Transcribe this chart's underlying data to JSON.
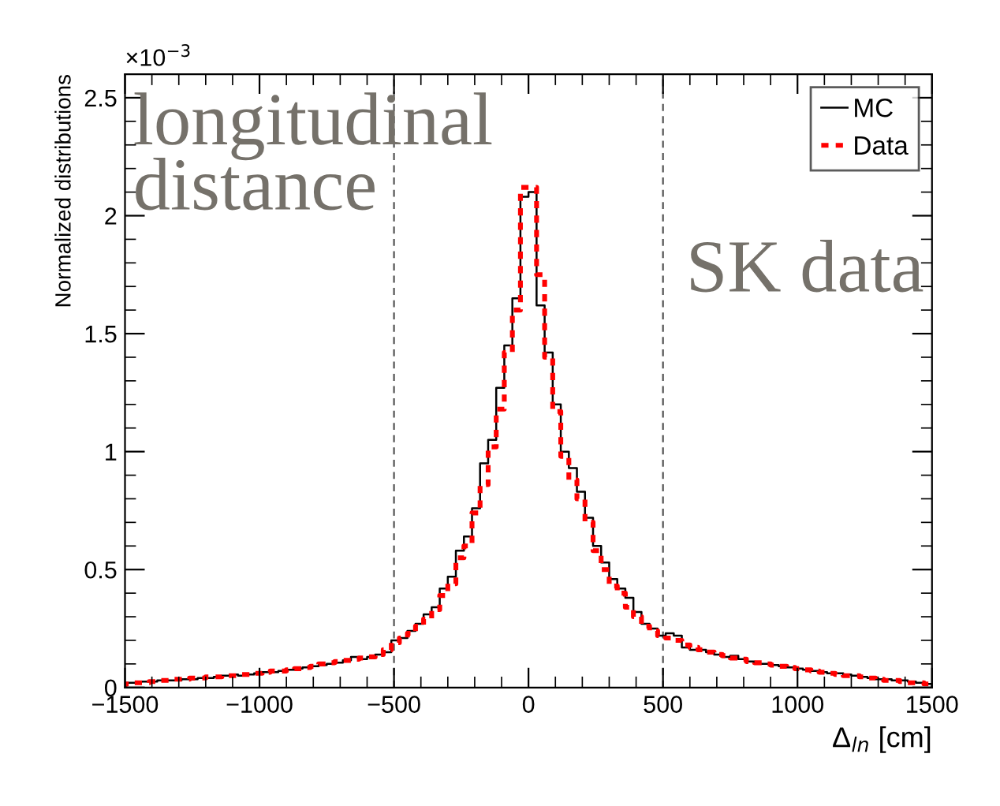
{
  "chart_data": {
    "type": "histogram",
    "ylabel": "Normalized distributions",
    "xlabel": "Δ$_{ln}$ [cm]",
    "bins": [
      -1500,
      -1470,
      -1440,
      -1410,
      -1380,
      -1350,
      -1320,
      -1290,
      -1260,
      -1230,
      -1200,
      -1170,
      -1140,
      -1110,
      -1080,
      -1050,
      -1020,
      -990,
      -960,
      -930,
      -900,
      -870,
      -840,
      -810,
      -780,
      -750,
      -720,
      -690,
      -660,
      -630,
      -600,
      -570,
      -540,
      -510,
      -480,
      -450,
      -420,
      -390,
      -360,
      -330,
      -300,
      -270,
      -240,
      -210,
      -180,
      -150,
      -120,
      -90,
      -60,
      -30,
      0,
      30,
      60,
      90,
      120,
      150,
      180,
      210,
      240,
      270,
      300,
      330,
      360,
      390,
      420,
      450,
      480,
      510,
      540,
      570,
      600,
      630,
      660,
      690,
      720,
      750,
      780,
      810,
      840,
      870,
      900,
      930,
      960,
      990,
      1020,
      1050,
      1080,
      1110,
      1140,
      1170,
      1200,
      1230,
      1260,
      1290,
      1320,
      1350,
      1380,
      1410,
      1440,
      1470,
      1500
    ],
    "series": [
      {
        "name": "MC",
        "color": "#000000",
        "line_style": "solid",
        "values": [
          0.02,
          0.02,
          0.025,
          0.025,
          0.03,
          0.03,
          0.03,
          0.035,
          0.035,
          0.04,
          0.04,
          0.045,
          0.05,
          0.055,
          0.05,
          0.055,
          0.06,
          0.065,
          0.065,
          0.07,
          0.075,
          0.08,
          0.085,
          0.09,
          0.095,
          0.1,
          0.105,
          0.115,
          0.13,
          0.12,
          0.13,
          0.14,
          0.15,
          0.2,
          0.21,
          0.24,
          0.27,
          0.31,
          0.34,
          0.42,
          0.47,
          0.58,
          0.64,
          0.76,
          0.95,
          1.05,
          1.27,
          1.45,
          1.65,
          2.08,
          2.1,
          1.62,
          1.42,
          1.2,
          1.0,
          0.93,
          0.83,
          0.72,
          0.6,
          0.53,
          0.46,
          0.42,
          0.38,
          0.32,
          0.27,
          0.25,
          0.22,
          0.23,
          0.22,
          0.17,
          0.16,
          0.16,
          0.15,
          0.14,
          0.13,
          0.135,
          0.12,
          0.11,
          0.1,
          0.1,
          0.095,
          0.09,
          0.085,
          0.08,
          0.075,
          0.07,
          0.065,
          0.06,
          0.06,
          0.055,
          0.05,
          0.045,
          0.04,
          0.035,
          0.035,
          0.03,
          0.03,
          0.025,
          0.02,
          0.015
        ]
      },
      {
        "name": "Data",
        "color": "#ff0000",
        "line_style": "dotted",
        "values": [
          0.015,
          0.02,
          0.02,
          0.025,
          0.03,
          0.03,
          0.035,
          0.035,
          0.04,
          0.04,
          0.045,
          0.045,
          0.05,
          0.05,
          0.055,
          0.055,
          0.06,
          0.065,
          0.07,
          0.07,
          0.075,
          0.08,
          0.085,
          0.09,
          0.1,
          0.105,
          0.11,
          0.115,
          0.12,
          0.125,
          0.13,
          0.14,
          0.16,
          0.19,
          0.21,
          0.23,
          0.26,
          0.29,
          0.33,
          0.39,
          0.44,
          0.55,
          0.6,
          0.74,
          0.86,
          1.02,
          1.18,
          1.42,
          1.6,
          2.12,
          2.12,
          1.75,
          1.4,
          1.17,
          0.98,
          0.88,
          0.8,
          0.7,
          0.58,
          0.5,
          0.43,
          0.4,
          0.34,
          0.3,
          0.26,
          0.24,
          0.22,
          0.21,
          0.2,
          0.18,
          0.17,
          0.16,
          0.15,
          0.14,
          0.135,
          0.125,
          0.12,
          0.11,
          0.105,
          0.1,
          0.095,
          0.09,
          0.085,
          0.08,
          0.075,
          0.07,
          0.065,
          0.06,
          0.055,
          0.05,
          0.05,
          0.045,
          0.04,
          0.035,
          0.03,
          0.03,
          0.025,
          0.02,
          0.02,
          0.015
        ]
      }
    ],
    "xlim": [
      -1500,
      1500
    ],
    "xticks": [
      {
        "value": -1500,
        "label": "−1500"
      },
      {
        "value": -1000,
        "label": "−1000"
      },
      {
        "value": -500,
        "label": "−500"
      },
      0,
      500,
      1000,
      1500
    ],
    "ylim": [
      0,
      2.6
    ],
    "yticks": [
      0,
      0.5,
      1,
      1.5,
      2,
      2.5
    ],
    "ref_lines": [
      {
        "axis": "x",
        "value": -500,
        "color": "#555555",
        "line_style": "dashed"
      },
      {
        "axis": "x",
        "value": 500,
        "color": "#555555",
        "line_style": "dashed"
      }
    ],
    "annotations": [
      "×10$^{−3}$",
      "longitudinal\ndistance",
      "SK data"
    ],
    "legend": "top right",
    "grid": false
  }
}
